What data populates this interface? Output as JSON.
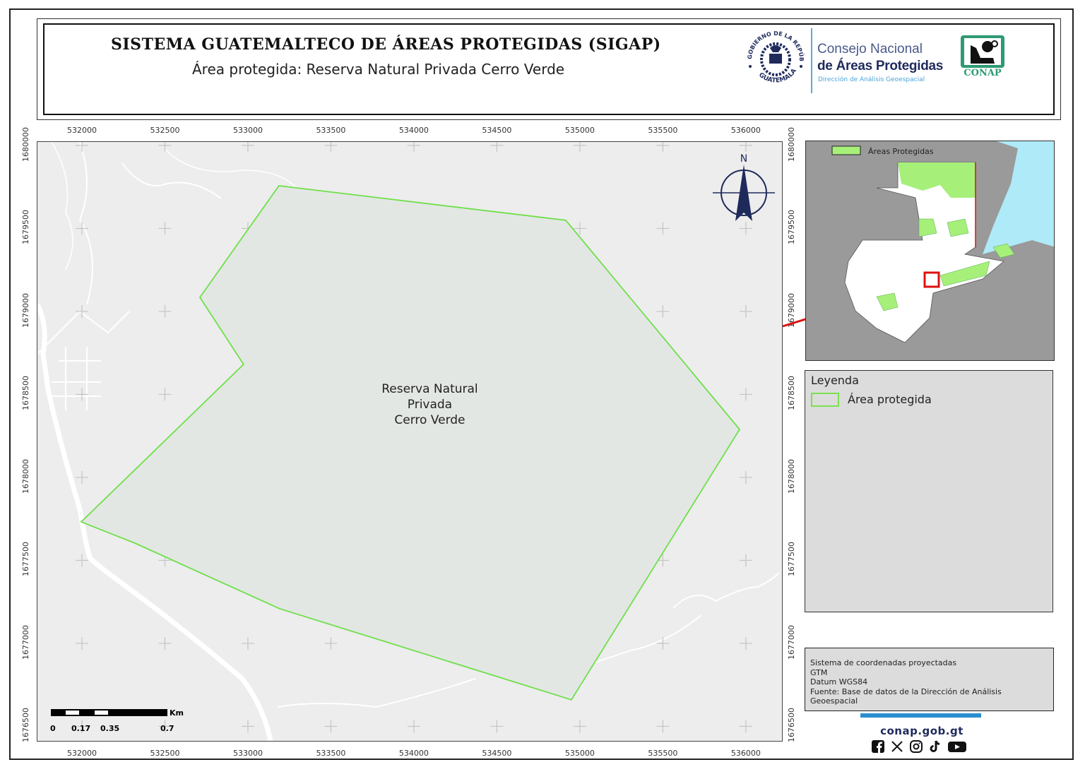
{
  "header": {
    "title": "SISTEMA GUATEMALTECO DE ÁREAS PROTEGIDAS  (SIGAP)",
    "subtitle": "Área protegida: Reserva Natural Privada Cerro Verde",
    "gov_seal_text": "GOBIERNO DE LA REPÚBLICA · GUATEMALA",
    "org_line1": "Consejo Nacional",
    "org_line2": "de Áreas Protegidas",
    "org_line3": "Dirección de Análisis Geoespacial",
    "conap_logo_text": "CONAP"
  },
  "map": {
    "x_extent": [
      531732,
      536226
    ],
    "y_extent": [
      1676404,
      1680021
    ],
    "x_ticks": [
      "532000",
      "532500",
      "533000",
      "533500",
      "534000",
      "534500",
      "535000",
      "535500",
      "536000"
    ],
    "y_ticks": [
      "1680000",
      "1679500",
      "1679000",
      "1678500",
      "1678000",
      "1677500",
      "1677000",
      "1676500"
    ],
    "grid_crosses": true,
    "area_label": [
      "Reserva Natural",
      "Privada",
      "Cerro Verde"
    ],
    "area_polygon": [
      [
        533187,
        1679757
      ],
      [
        534915,
        1679549
      ],
      [
        535962,
        1678289
      ],
      [
        534949,
        1676660
      ],
      [
        533191,
        1677209
      ],
      [
        532319,
        1677604
      ],
      [
        531996,
        1677732
      ],
      [
        532974,
        1678681
      ],
      [
        532711,
        1679085
      ]
    ],
    "area_outline_color": "#6ee04a",
    "area_fill_color": "#e3e7e3",
    "basemap_color": "#ededed",
    "north_label": "N",
    "scale": {
      "unit": "Km",
      "labels": [
        "0",
        "0.17",
        "0.35",
        "0.7"
      ]
    }
  },
  "inset": {
    "legend_label": "Áreas Protegidas",
    "protected_color": "#a6f07a",
    "water_color": "#aeeaf7",
    "locator_color": "#e01010"
  },
  "legend": {
    "title": "Leyenda",
    "items": [
      {
        "label": "Área protegida",
        "color": "#7be24e"
      }
    ]
  },
  "info": {
    "lines": [
      "Sistema de coordenadas proyectadas",
      "GTM",
      "Datum WGS84",
      "Fuente: Base de datos de la Dirección de Análisis Geoespacial"
    ]
  },
  "footer": {
    "url": "conap.gob.gt",
    "social_icons": [
      "facebook-icon",
      "x-icon",
      "instagram-icon",
      "tiktok-icon",
      "youtube-icon"
    ]
  }
}
